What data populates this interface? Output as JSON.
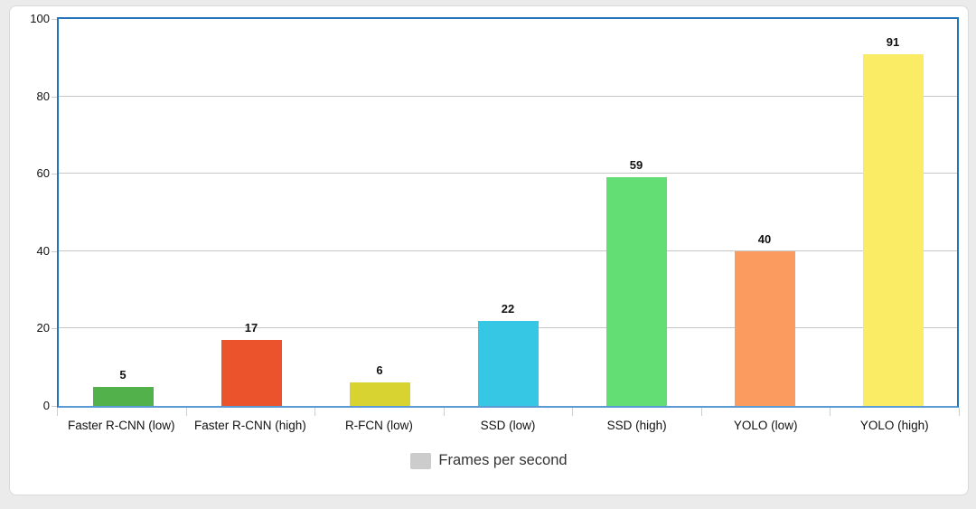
{
  "chart_data": {
    "type": "bar",
    "title": "",
    "xlabel": "",
    "ylabel": "",
    "categories": [
      "Faster R-CNN (low)",
      "Faster R-CNN (high)",
      "R-FCN (low)",
      "SSD (low)",
      "SSD (high)",
      "YOLO (low)",
      "YOLO (high)"
    ],
    "values": [
      5,
      17,
      6,
      22,
      59,
      40,
      91
    ],
    "bar_colors": [
      "#52b14a",
      "#ea532c",
      "#d8d330",
      "#35c7e3",
      "#63de74",
      "#fb9b5f",
      "#fbec66"
    ],
    "ylim": [
      0,
      100
    ],
    "yticks": [
      0,
      20,
      40,
      60,
      80,
      100
    ],
    "grid": true,
    "legend": {
      "position": "bottom",
      "items": [
        {
          "label": "Frames per second",
          "swatch_color": "#cccccc"
        }
      ]
    }
  },
  "colors": {
    "page_background": "#ebebeb",
    "card_background": "#ffffff",
    "card_border": "#d9d9d9",
    "plot_border": "#2273b9",
    "axis_line": "#5b9bd5",
    "gridline": "#c7c7c7",
    "tick": "#c9ced4",
    "label_text": "#111111",
    "legend_text": "#333333"
  }
}
